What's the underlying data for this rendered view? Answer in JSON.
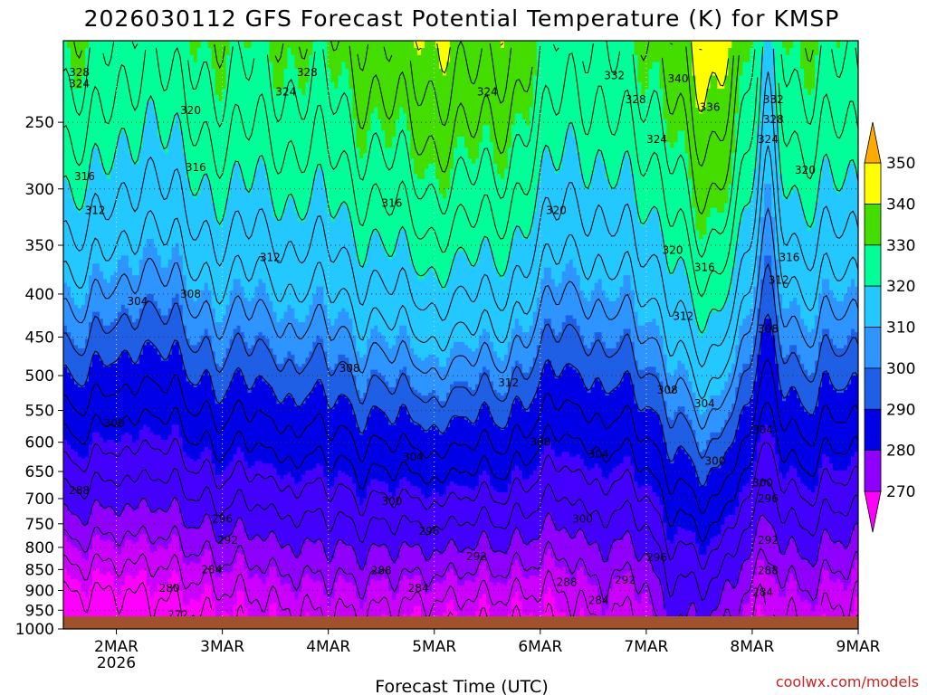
{
  "chart_data": {
    "type": "heatmap",
    "title": "2026030112 GFS Forecast Potential Temperature (K) for KMSP",
    "xlabel": "Forecast Time (UTC)",
    "ylabel": "",
    "credit": "coolwx.com/models",
    "x_ticks": [
      "2MAR",
      "3MAR",
      "4MAR",
      "5MAR",
      "6MAR",
      "7MAR",
      "8MAR",
      "9MAR"
    ],
    "x_tick_sublabel": "2026",
    "x_range_days": [
      1.5,
      9.0
    ],
    "y_ticks": [
      250,
      300,
      350,
      400,
      450,
      500,
      550,
      600,
      650,
      700,
      750,
      800,
      850,
      900,
      950,
      1000
    ],
    "y_range_hpa": [
      200,
      1000
    ],
    "y_scale": "log-pressure",
    "grid": "dotted",
    "colorbar": {
      "levels": [
        270,
        280,
        290,
        300,
        310,
        320,
        330,
        340,
        350
      ],
      "colors": [
        "#ff00ff",
        "#cc00ff",
        "#8f00ff",
        "#4400ff",
        "#0000e6",
        "#1f5fe6",
        "#2e94ff",
        "#22c8ff",
        "#00ff99",
        "#44dd00",
        "#ffff00",
        "#ffaa00"
      ],
      "placement": "right"
    },
    "ground_color": "#a0522d",
    "contour_labels": [
      {
        "text": "328",
        "x": 1.65,
        "p": 218
      },
      {
        "text": "324",
        "x": 1.65,
        "p": 225
      },
      {
        "text": "328",
        "x": 3.8,
        "p": 218
      },
      {
        "text": "324",
        "x": 3.6,
        "p": 230
      },
      {
        "text": "324",
        "x": 5.5,
        "p": 230
      },
      {
        "text": "332",
        "x": 6.7,
        "p": 220
      },
      {
        "text": "340",
        "x": 7.3,
        "p": 222
      },
      {
        "text": "328",
        "x": 6.9,
        "p": 235
      },
      {
        "text": "336",
        "x": 7.6,
        "p": 240
      },
      {
        "text": "332",
        "x": 8.2,
        "p": 235
      },
      {
        "text": "328",
        "x": 8.2,
        "p": 248
      },
      {
        "text": "324",
        "x": 8.15,
        "p": 262
      },
      {
        "text": "320",
        "x": 8.5,
        "p": 285
      },
      {
        "text": "324",
        "x": 7.1,
        "p": 262
      },
      {
        "text": "320",
        "x": 2.7,
        "p": 242
      },
      {
        "text": "316",
        "x": 1.7,
        "p": 290
      },
      {
        "text": "316",
        "x": 2.75,
        "p": 283
      },
      {
        "text": "312",
        "x": 1.8,
        "p": 318
      },
      {
        "text": "316",
        "x": 4.6,
        "p": 312
      },
      {
        "text": "320",
        "x": 6.15,
        "p": 318
      },
      {
        "text": "320",
        "x": 7.25,
        "p": 355
      },
      {
        "text": "316",
        "x": 7.55,
        "p": 372
      },
      {
        "text": "316",
        "x": 8.35,
        "p": 362
      },
      {
        "text": "312",
        "x": 3.45,
        "p": 362
      },
      {
        "text": "312",
        "x": 8.25,
        "p": 385
      },
      {
        "text": "312",
        "x": 7.35,
        "p": 425
      },
      {
        "text": "308",
        "x": 2.7,
        "p": 400
      },
      {
        "text": "304",
        "x": 2.2,
        "p": 408
      },
      {
        "text": "308",
        "x": 8.15,
        "p": 440
      },
      {
        "text": "308",
        "x": 4.2,
        "p": 490
      },
      {
        "text": "312",
        "x": 5.7,
        "p": 510
      },
      {
        "text": "308",
        "x": 7.2,
        "p": 520
      },
      {
        "text": "304",
        "x": 7.55,
        "p": 540
      },
      {
        "text": "304",
        "x": 8.1,
        "p": 580
      },
      {
        "text": "300",
        "x": 1.98,
        "p": 570
      },
      {
        "text": "308",
        "x": 6.0,
        "p": 600
      },
      {
        "text": "304",
        "x": 6.55,
        "p": 620
      },
      {
        "text": "304",
        "x": 4.8,
        "p": 625
      },
      {
        "text": "300",
        "x": 7.65,
        "p": 632
      },
      {
        "text": "300",
        "x": 8.1,
        "p": 670
      },
      {
        "text": "296",
        "x": 8.15,
        "p": 700
      },
      {
        "text": "288",
        "x": 1.65,
        "p": 685
      },
      {
        "text": "300",
        "x": 4.6,
        "p": 705
      },
      {
        "text": "300",
        "x": 6.4,
        "p": 740
      },
      {
        "text": "296",
        "x": 3.0,
        "p": 740
      },
      {
        "text": "296",
        "x": 4.95,
        "p": 765
      },
      {
        "text": "292",
        "x": 3.05,
        "p": 785
      },
      {
        "text": "292",
        "x": 8.15,
        "p": 785
      },
      {
        "text": "292",
        "x": 5.4,
        "p": 820
      },
      {
        "text": "296",
        "x": 7.1,
        "p": 822
      },
      {
        "text": "284",
        "x": 2.9,
        "p": 850
      },
      {
        "text": "288",
        "x": 4.5,
        "p": 852
      },
      {
        "text": "288",
        "x": 8.15,
        "p": 852
      },
      {
        "text": "292",
        "x": 6.8,
        "p": 875
      },
      {
        "text": "288",
        "x": 6.25,
        "p": 880
      },
      {
        "text": "280",
        "x": 2.5,
        "p": 895
      },
      {
        "text": "284",
        "x": 4.85,
        "p": 895
      },
      {
        "text": "284",
        "x": 8.1,
        "p": 905
      },
      {
        "text": "284",
        "x": 6.55,
        "p": 925
      },
      {
        "text": "272",
        "x": 2.58,
        "p": 962
      }
    ]
  }
}
